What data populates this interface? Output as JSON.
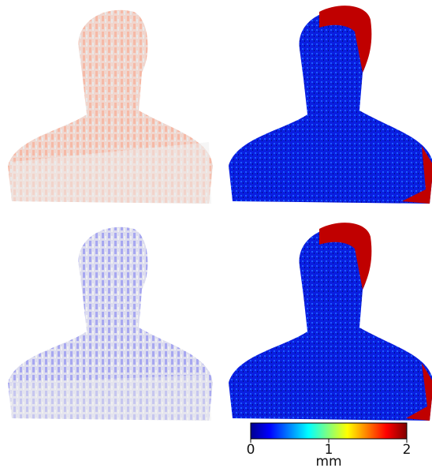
{
  "colorbar": {
    "label": "mm",
    "lim": [
      0,
      2
    ],
    "ticks": [
      0,
      1,
      2
    ]
  }
}
